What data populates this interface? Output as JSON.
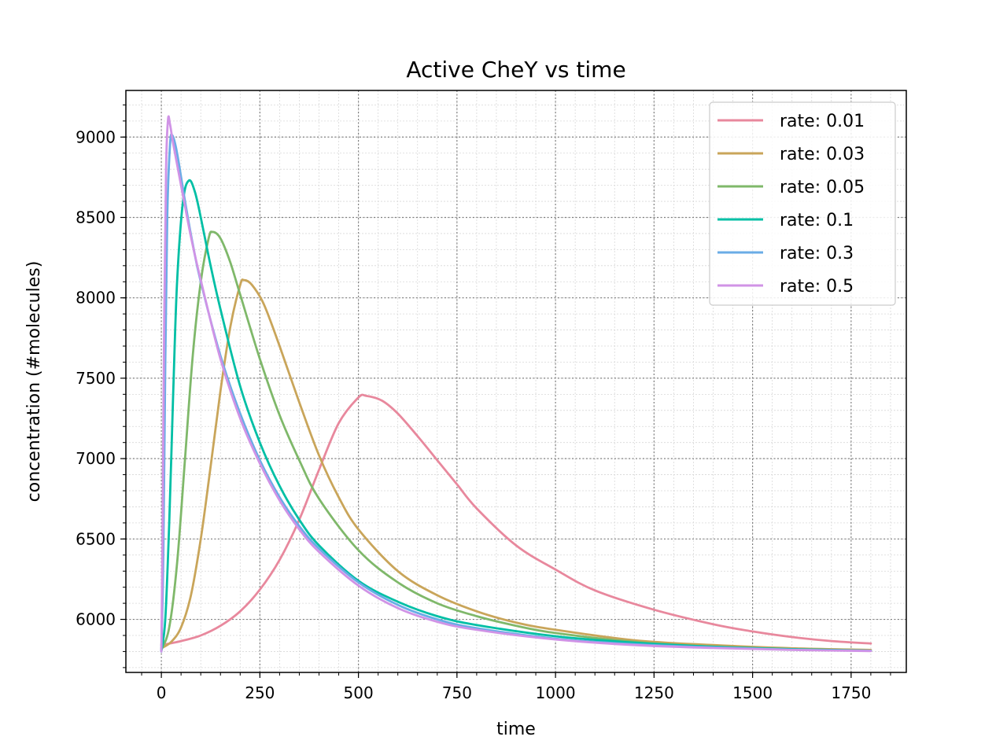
{
  "chart_data": {
    "type": "line",
    "title": "Active CheY vs time",
    "xlabel": "time",
    "ylabel": "concentration (#molecules)",
    "xlim": [
      -90,
      1890
    ],
    "ylim": [
      5670,
      9290
    ],
    "xticks": [
      0,
      250,
      500,
      750,
      1000,
      1250,
      1500,
      1750
    ],
    "yticks": [
      6000,
      6500,
      7000,
      7500,
      8000,
      8500,
      9000
    ],
    "grid": true,
    "legend_position": "upper right",
    "series": [
      {
        "name": "rate: 0.01",
        "color": "#e8889d",
        "points": [
          [
            0,
            5840
          ],
          [
            50,
            5865
          ],
          [
            100,
            5900
          ],
          [
            150,
            5960
          ],
          [
            200,
            6050
          ],
          [
            250,
            6185
          ],
          [
            300,
            6370
          ],
          [
            350,
            6620
          ],
          [
            400,
            6930
          ],
          [
            450,
            7220
          ],
          [
            500,
            7380
          ],
          [
            520,
            7390
          ],
          [
            560,
            7360
          ],
          [
            600,
            7280
          ],
          [
            650,
            7140
          ],
          [
            700,
            6990
          ],
          [
            750,
            6840
          ],
          [
            800,
            6690
          ],
          [
            900,
            6460
          ],
          [
            1000,
            6310
          ],
          [
            1100,
            6180
          ],
          [
            1250,
            6060
          ],
          [
            1400,
            5970
          ],
          [
            1500,
            5925
          ],
          [
            1600,
            5890
          ],
          [
            1700,
            5865
          ],
          [
            1800,
            5850
          ]
        ]
      },
      {
        "name": "rate: 0.03",
        "color": "#c9a55a",
        "points": [
          [
            0,
            5820
          ],
          [
            25,
            5860
          ],
          [
            50,
            5950
          ],
          [
            75,
            6150
          ],
          [
            100,
            6500
          ],
          [
            125,
            6950
          ],
          [
            150,
            7420
          ],
          [
            175,
            7820
          ],
          [
            200,
            8080
          ],
          [
            210,
            8110
          ],
          [
            230,
            8080
          ],
          [
            260,
            7960
          ],
          [
            300,
            7700
          ],
          [
            350,
            7350
          ],
          [
            400,
            7020
          ],
          [
            450,
            6760
          ],
          [
            500,
            6560
          ],
          [
            600,
            6300
          ],
          [
            700,
            6150
          ],
          [
            800,
            6050
          ],
          [
            900,
            5980
          ],
          [
            1000,
            5935
          ],
          [
            1200,
            5870
          ],
          [
            1400,
            5840
          ],
          [
            1600,
            5820
          ],
          [
            1800,
            5810
          ]
        ]
      },
      {
        "name": "rate: 0.05",
        "color": "#7fb86a",
        "points": [
          [
            0,
            5810
          ],
          [
            20,
            5950
          ],
          [
            40,
            6350
          ],
          [
            60,
            7000
          ],
          [
            80,
            7650
          ],
          [
            100,
            8100
          ],
          [
            120,
            8370
          ],
          [
            130,
            8410
          ],
          [
            150,
            8370
          ],
          [
            175,
            8220
          ],
          [
            200,
            8020
          ],
          [
            250,
            7620
          ],
          [
            300,
            7270
          ],
          [
            350,
            6990
          ],
          [
            400,
            6750
          ],
          [
            500,
            6430
          ],
          [
            600,
            6230
          ],
          [
            700,
            6100
          ],
          [
            800,
            6020
          ],
          [
            900,
            5960
          ],
          [
            1000,
            5915
          ],
          [
            1200,
            5860
          ],
          [
            1400,
            5830
          ],
          [
            1600,
            5815
          ],
          [
            1800,
            5805
          ]
        ]
      },
      {
        "name": "rate: 0.1",
        "color": "#00bfa5",
        "points": [
          [
            0,
            5800
          ],
          [
            10,
            6000
          ],
          [
            20,
            6600
          ],
          [
            30,
            7400
          ],
          [
            40,
            8100
          ],
          [
            55,
            8600
          ],
          [
            70,
            8730
          ],
          [
            85,
            8660
          ],
          [
            100,
            8500
          ],
          [
            125,
            8200
          ],
          [
            150,
            7930
          ],
          [
            200,
            7450
          ],
          [
            250,
            7100
          ],
          [
            300,
            6830
          ],
          [
            350,
            6620
          ],
          [
            400,
            6460
          ],
          [
            500,
            6240
          ],
          [
            600,
            6110
          ],
          [
            700,
            6020
          ],
          [
            800,
            5965
          ],
          [
            1000,
            5895
          ],
          [
            1200,
            5855
          ],
          [
            1400,
            5830
          ],
          [
            1600,
            5815
          ],
          [
            1800,
            5805
          ]
        ]
      },
      {
        "name": "rate: 0.3",
        "color": "#6aace6",
        "points": [
          [
            0,
            5800
          ],
          [
            5,
            6400
          ],
          [
            10,
            7600
          ],
          [
            15,
            8500
          ],
          [
            22,
            8950
          ],
          [
            28,
            9010
          ],
          [
            40,
            8900
          ],
          [
            60,
            8600
          ],
          [
            80,
            8330
          ],
          [
            100,
            8100
          ],
          [
            150,
            7640
          ],
          [
            200,
            7280
          ],
          [
            250,
            6990
          ],
          [
            300,
            6760
          ],
          [
            350,
            6580
          ],
          [
            400,
            6440
          ],
          [
            500,
            6230
          ],
          [
            600,
            6090
          ],
          [
            700,
            6000
          ],
          [
            800,
            5945
          ],
          [
            1000,
            5880
          ],
          [
            1200,
            5845
          ],
          [
            1400,
            5825
          ],
          [
            1600,
            5812
          ],
          [
            1800,
            5805
          ]
        ]
      },
      {
        "name": "rate: 0.5",
        "color": "#d093e6",
        "points": [
          [
            0,
            5800
          ],
          [
            3,
            6500
          ],
          [
            7,
            7800
          ],
          [
            12,
            8800
          ],
          [
            17,
            9110
          ],
          [
            22,
            9080
          ],
          [
            30,
            8960
          ],
          [
            50,
            8700
          ],
          [
            75,
            8380
          ],
          [
            100,
            8110
          ],
          [
            150,
            7620
          ],
          [
            200,
            7250
          ],
          [
            250,
            6970
          ],
          [
            300,
            6740
          ],
          [
            350,
            6560
          ],
          [
            400,
            6420
          ],
          [
            500,
            6210
          ],
          [
            600,
            6070
          ],
          [
            700,
            5985
          ],
          [
            800,
            5935
          ],
          [
            1000,
            5875
          ],
          [
            1200,
            5840
          ],
          [
            1400,
            5822
          ],
          [
            1600,
            5810
          ],
          [
            1800,
            5803
          ]
        ]
      }
    ]
  }
}
